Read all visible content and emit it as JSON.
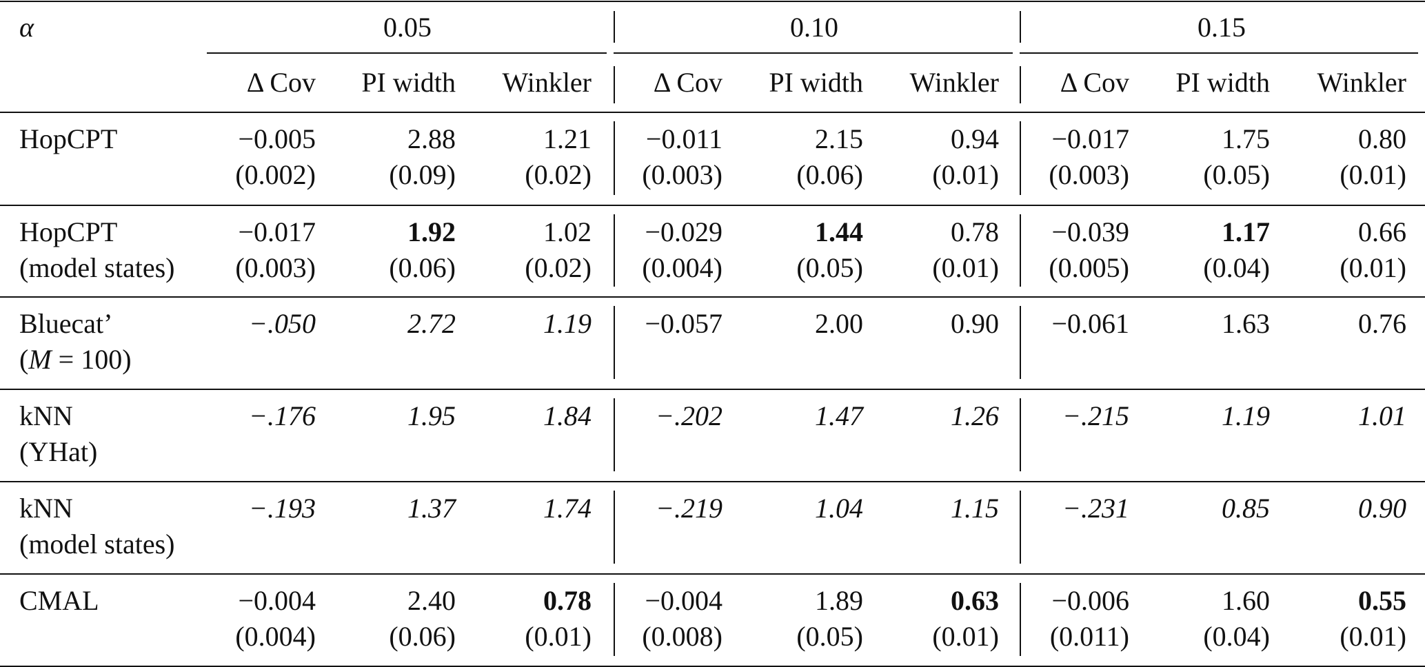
{
  "header": {
    "alpha_label": "α",
    "alpha_groups": [
      "0.05",
      "0.10",
      "0.15"
    ],
    "metric_labels": [
      "Δ Cov",
      "PI width",
      "Winkler"
    ]
  },
  "rows": [
    {
      "name_line1": "HopCPT",
      "name_line2": "",
      "cells": [
        {
          "value": "−0.005",
          "std": "(0.002)",
          "style": "normal"
        },
        {
          "value": "2.88",
          "std": "(0.09)",
          "style": "normal"
        },
        {
          "value": "1.21",
          "std": "(0.02)",
          "style": "normal"
        },
        {
          "value": "−0.011",
          "std": "(0.003)",
          "style": "normal"
        },
        {
          "value": "2.15",
          "std": "(0.06)",
          "style": "normal"
        },
        {
          "value": "0.94",
          "std": "(0.01)",
          "style": "normal"
        },
        {
          "value": "−0.017",
          "std": "(0.003)",
          "style": "normal"
        },
        {
          "value": "1.75",
          "std": "(0.05)",
          "style": "normal"
        },
        {
          "value": "0.80",
          "std": "(0.01)",
          "style": "normal"
        }
      ]
    },
    {
      "name_line1": "HopCPT",
      "name_line2": "(model states)",
      "cells": [
        {
          "value": "−0.017",
          "std": "(0.003)",
          "style": "normal"
        },
        {
          "value": "1.92",
          "std": "(0.06)",
          "style": "bold"
        },
        {
          "value": "1.02",
          "std": "(0.02)",
          "style": "normal"
        },
        {
          "value": "−0.029",
          "std": "(0.004)",
          "style": "normal"
        },
        {
          "value": "1.44",
          "std": "(0.05)",
          "style": "bold"
        },
        {
          "value": "0.78",
          "std": "(0.01)",
          "style": "normal"
        },
        {
          "value": "−0.039",
          "std": "(0.005)",
          "style": "normal"
        },
        {
          "value": "1.17",
          "std": "(0.04)",
          "style": "bold"
        },
        {
          "value": "0.66",
          "std": "(0.01)",
          "style": "normal"
        }
      ]
    },
    {
      "name_line1": "Bluecat’",
      "name_line2": "(M = 100)",
      "cells": [
        {
          "value": "−.050",
          "std": "",
          "style": "italic"
        },
        {
          "value": "2.72",
          "std": "",
          "style": "italic"
        },
        {
          "value": "1.19",
          "std": "",
          "style": "italic"
        },
        {
          "value": "−0.057",
          "std": "",
          "style": "normal"
        },
        {
          "value": "2.00",
          "std": "",
          "style": "normal"
        },
        {
          "value": "0.90",
          "std": "",
          "style": "normal"
        },
        {
          "value": "−0.061",
          "std": "",
          "style": "normal"
        },
        {
          "value": "1.63",
          "std": "",
          "style": "normal"
        },
        {
          "value": "0.76",
          "std": "",
          "style": "normal"
        }
      ]
    },
    {
      "name_line1": "kNN",
      "name_line2": "(YHat)",
      "cells": [
        {
          "value": "−.176",
          "std": "",
          "style": "italic"
        },
        {
          "value": "1.95",
          "std": "",
          "style": "italic"
        },
        {
          "value": "1.84",
          "std": "",
          "style": "italic"
        },
        {
          "value": "−.202",
          "std": "",
          "style": "italic"
        },
        {
          "value": "1.47",
          "std": "",
          "style": "italic"
        },
        {
          "value": "1.26",
          "std": "",
          "style": "italic"
        },
        {
          "value": "−.215",
          "std": "",
          "style": "italic"
        },
        {
          "value": "1.19",
          "std": "",
          "style": "italic"
        },
        {
          "value": "1.01",
          "std": "",
          "style": "italic"
        }
      ]
    },
    {
      "name_line1": "kNN",
      "name_line2": "(model states)",
      "cells": [
        {
          "value": "−.193",
          "std": "",
          "style": "italic"
        },
        {
          "value": "1.37",
          "std": "",
          "style": "italic"
        },
        {
          "value": "1.74",
          "std": "",
          "style": "italic"
        },
        {
          "value": "−.219",
          "std": "",
          "style": "italic"
        },
        {
          "value": "1.04",
          "std": "",
          "style": "italic"
        },
        {
          "value": "1.15",
          "std": "",
          "style": "italic"
        },
        {
          "value": "−.231",
          "std": "",
          "style": "italic"
        },
        {
          "value": "0.85",
          "std": "",
          "style": "italic"
        },
        {
          "value": "0.90",
          "std": "",
          "style": "italic"
        }
      ]
    },
    {
      "name_line1": "CMAL",
      "name_line2": "",
      "cells": [
        {
          "value": "−0.004",
          "std": "(0.004)",
          "style": "normal"
        },
        {
          "value": "2.40",
          "std": "(0.06)",
          "style": "normal"
        },
        {
          "value": "0.78",
          "std": "(0.01)",
          "style": "bold"
        },
        {
          "value": "−0.004",
          "std": "(0.008)",
          "style": "normal"
        },
        {
          "value": "1.89",
          "std": "(0.05)",
          "style": "normal"
        },
        {
          "value": "0.63",
          "std": "(0.01)",
          "style": "bold"
        },
        {
          "value": "−0.006",
          "std": "(0.011)",
          "style": "normal"
        },
        {
          "value": "1.60",
          "std": "(0.04)",
          "style": "normal"
        },
        {
          "value": "0.55",
          "std": "(0.01)",
          "style": "bold"
        }
      ]
    }
  ]
}
